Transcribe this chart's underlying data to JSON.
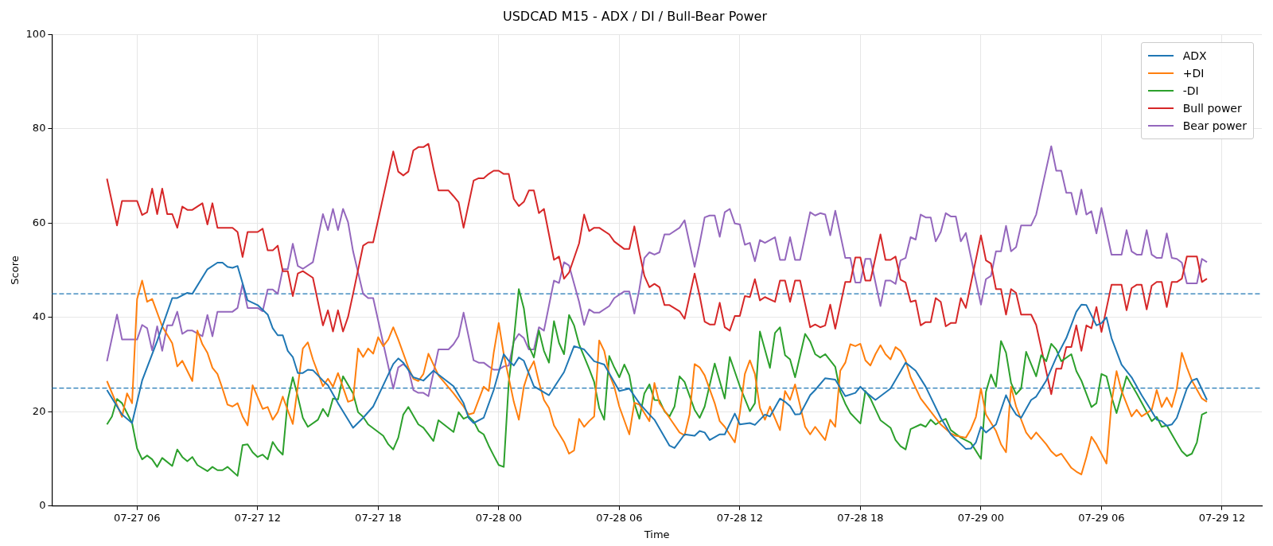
{
  "chart_data": {
    "type": "line",
    "title": "USDCAD M15 - ADX / DI / Bull-Bear Power",
    "xlabel": "Time",
    "ylabel": "Score",
    "xlim": [
      "--07-27T01:46",
      "--07-29T13:59"
    ],
    "xticks": [
      {
        "value": "--07-27T06:00",
        "label": "07-27 06"
      },
      {
        "value": "--07-27T12:00",
        "label": "07-27 12"
      },
      {
        "value": "--07-27T18:00",
        "label": "07-27 18"
      },
      {
        "value": "--07-28T00:00",
        "label": "07-28 00"
      },
      {
        "value": "--07-28T06:00",
        "label": "07-28 06"
      },
      {
        "value": "--07-28T12:00",
        "label": "07-28 12"
      },
      {
        "value": "--07-28T18:00",
        "label": "07-28 18"
      },
      {
        "value": "--07-29T00:00",
        "label": "07-29 00"
      },
      {
        "value": "--07-29T06:00",
        "label": "07-29 06"
      },
      {
        "value": "--07-29T12:00",
        "label": "07-29 12"
      }
    ],
    "ylim": [
      0,
      100
    ],
    "yticks": [
      0,
      20,
      40,
      60,
      80,
      100
    ],
    "grid": true,
    "legend": "top right",
    "ref_lines": [
      {
        "axis": "y",
        "value": 45,
        "color": "#1f77b4",
        "line_style": "dashed"
      },
      {
        "axis": "y",
        "value": 25,
        "color": "#1f77b4",
        "line_style": "dashed"
      }
    ],
    "series": [
      {
        "name": "ADX",
        "color": "#1f77b4",
        "x": [
          "--07-27T04:30",
          "--07-27T05:15",
          "--07-27T05:45",
          "--07-27T06:15",
          "--07-27T07:00",
          "--07-27T07:45",
          "--07-27T08:00",
          "--07-27T08:30",
          "--07-27T08:45",
          "--07-27T09:30",
          "--07-27T10:00",
          "--07-27T10:15",
          "--07-27T10:30",
          "--07-27T10:45",
          "--07-27T11:00",
          "--07-27T11:30",
          "--07-27T12:00",
          "--07-27T12:30",
          "--07-27T12:45",
          "--07-27T13:00",
          "--07-27T13:15",
          "--07-27T13:30",
          "--07-27T13:45",
          "--07-27T14:00",
          "--07-27T14:15",
          "--07-27T14:30",
          "--07-27T14:45",
          "--07-27T15:15",
          "--07-27T15:30",
          "--07-27T16:00",
          "--07-27T16:45",
          "--07-27T17:15",
          "--07-27T17:45",
          "--07-27T18:45",
          "--07-27T19:00",
          "--07-27T19:15",
          "--07-27T19:45",
          "--07-27T20:15",
          "--07-27T20:45",
          "--07-27T21:45",
          "--07-27T22:15",
          "--07-27T22:30",
          "--07-27T22:45",
          "--07-27T23:15",
          "--07-27T23:45",
          "--07-28T00:15",
          "--07-28T00:30",
          "--07-28T00:45",
          "--07-28T01:00",
          "--07-28T01:15",
          "--07-28T01:45",
          "--07-28T02:30",
          "--07-28T03:15",
          "--07-28T03:45",
          "--07-28T04:15",
          "--07-28T04:45",
          "--07-28T05:15",
          "--07-28T06:00",
          "--07-28T06:30",
          "--07-28T07:00",
          "--07-28T07:30",
          "--07-28T07:45",
          "--07-28T08:30",
          "--07-28T08:45",
          "--07-28T09:15",
          "--07-28T09:45",
          "--07-28T10:00",
          "--07-28T10:15",
          "--07-28T10:30",
          "--07-28T11:00",
          "--07-28T11:15",
          "--07-28T11:45",
          "--07-28T12:00",
          "--07-28T12:30",
          "--07-28T12:45",
          "--07-28T13:15",
          "--07-28T13:30",
          "--07-28T14:00",
          "--07-28T14:15",
          "--07-28T14:30",
          "--07-28T14:45",
          "--07-28T15:00",
          "--07-28T15:30",
          "--07-28T15:45",
          "--07-28T16:15",
          "--07-28T16:45",
          "--07-28T17:15",
          "--07-28T17:45",
          "--07-28T18:00",
          "--07-28T18:15",
          "--07-28T18:45",
          "--07-28T19:30",
          "--07-28T20:15",
          "--07-28T20:45",
          "--07-28T21:15",
          "--07-28T22:00",
          "--07-28T22:30",
          "--07-28T23:15",
          "--07-28T23:30",
          "--07-28T23:45",
          "--07-29T00:00",
          "--07-29T00:15",
          "--07-29T00:45",
          "--07-29T01:15",
          "--07-29T01:30",
          "--07-29T01:45",
          "--07-29T02:00",
          "--07-29T02:30",
          "--07-29T02:45",
          "--07-29T03:15",
          "--07-29T03:45",
          "--07-29T04:15",
          "--07-29T04:45",
          "--07-29T05:00",
          "--07-29T05:15",
          "--07-29T05:45",
          "--07-29T06:00",
          "--07-29T06:15",
          "--07-29T06:30",
          "--07-29T07:00",
          "--07-29T07:30",
          "--07-29T08:00",
          "--07-29T08:30",
          "--07-29T08:45",
          "--07-29T09:00",
          "--07-29T09:15",
          "--07-29T09:30",
          "--07-29T09:45",
          "--07-29T10:15",
          "--07-29T10:30",
          "--07-29T10:45",
          "--07-29T11:15"
        ],
        "values": [
          24.6,
          19.4,
          17.6,
          26.6,
          35,
          44.1,
          44.1,
          45.2,
          45,
          50.2,
          51.6,
          51.6,
          50.7,
          50.5,
          50.9,
          43.6,
          42.6,
          40.6,
          37.7,
          36.2,
          36.2,
          32.9,
          31.6,
          28.2,
          28.2,
          28.9,
          28.8,
          26.6,
          25.6,
          21.8,
          16.6,
          18.7,
          21.1,
          30.1,
          31.3,
          30.4,
          27.3,
          26.6,
          28.7,
          25.4,
          21.8,
          18.7,
          17.6,
          18.7,
          24.6,
          32.2,
          30.8,
          29.8,
          31.5,
          30.8,
          25.4,
          23.5,
          28.4,
          33.9,
          33.2,
          30.7,
          30,
          24.4,
          24.9,
          21.8,
          19.4,
          18.3,
          12.8,
          12.3,
          15.2,
          14.9,
          15.9,
          15.6,
          14,
          15.2,
          15.2,
          19.6,
          17.3,
          17.6,
          17.2,
          19.4,
          19,
          22.8,
          22.1,
          21.2,
          19.4,
          19.5,
          23.5,
          24.6,
          27.1,
          26.8,
          23.3,
          24,
          25.3,
          24.2,
          22.5,
          24.9,
          30.4,
          28.7,
          25.3,
          18.7,
          15.2,
          12.1,
          12.2,
          13.5,
          16.8,
          15.6,
          17.3,
          23.5,
          21.1,
          19.4,
          18.7,
          22.5,
          23.2,
          26.6,
          31.5,
          35.6,
          41.2,
          42.7,
          42.6,
          38.3,
          38.8,
          40,
          35.6,
          30,
          27.3,
          23.5,
          20.1,
          18.3,
          18,
          17,
          17.3,
          18.7,
          24.9,
          26.6,
          27,
          22.5
        ]
      },
      {
        "name": "+DI",
        "color": "#ff7f0e",
        "x": [
          "--07-27T04:30",
          "--07-27T05:15",
          "--07-27T05:30",
          "--07-27T05:45",
          "--07-27T06:00",
          "--07-27T06:15",
          "--07-27T06:30",
          "--07-27T06:45",
          "--07-27T07:15",
          "--07-27T07:45",
          "--07-27T08:00",
          "--07-27T08:15",
          "--07-27T08:45",
          "--07-27T09:00",
          "--07-27T09:15",
          "--07-27T09:30",
          "--07-27T09:45",
          "--07-27T10:00",
          "--07-27T10:15",
          "--07-27T10:30",
          "--07-27T10:45",
          "--07-27T11:00",
          "--07-27T11:15",
          "--07-27T11:30",
          "--07-27T11:45",
          "--07-27T12:15",
          "--07-27T12:30",
          "--07-27T12:45",
          "--07-27T13:00",
          "--07-27T13:15",
          "--07-27T13:45",
          "--07-27T14:15",
          "--07-27T14:30",
          "--07-27T14:45",
          "--07-27T15:15",
          "--07-27T15:30",
          "--07-27T15:45",
          "--07-27T16:00",
          "--07-27T16:30",
          "--07-27T16:45",
          "--07-27T17:00",
          "--07-27T17:15",
          "--07-27T17:30",
          "--07-27T17:45",
          "--07-27T18:00",
          "--07-27T18:15",
          "--07-27T18:30",
          "--07-27T18:45",
          "--07-27T19:00",
          "--07-27T19:30",
          "--07-27T19:45",
          "--07-27T20:00",
          "--07-27T20:15",
          "--07-27T20:30",
          "--07-27T21:00",
          "--07-27T21:45",
          "--07-27T22:15",
          "--07-27T22:30",
          "--07-27T22:45",
          "--07-27T23:15",
          "--07-27T23:30",
          "--07-27T23:45",
          "--07-28T00:00",
          "--07-28T00:15",
          "--07-28T00:45",
          "--07-28T01:00",
          "--07-28T01:15",
          "--07-28T01:30",
          "--07-28T01:45",
          "--07-28T02:00",
          "--07-28T02:15",
          "--07-28T02:30",
          "--07-28T02:45",
          "--07-28T03:15",
          "--07-28T03:30",
          "--07-28T03:45",
          "--07-28T04:00",
          "--07-28T04:15",
          "--07-28T04:30",
          "--07-28T04:45",
          "--07-28T05:00",
          "--07-28T05:15",
          "--07-28T05:30",
          "--07-28T05:45",
          "--07-28T06:00",
          "--07-28T06:30",
          "--07-28T06:45",
          "--07-28T07:00",
          "--07-28T07:15",
          "--07-28T07:30",
          "--07-28T07:45",
          "--07-28T08:00",
          "--07-28T08:30",
          "--07-28T09:00",
          "--07-28T09:15",
          "--07-28T09:30",
          "--07-28T09:45",
          "--07-28T10:00",
          "--07-28T10:15",
          "--07-28T10:45",
          "--07-28T11:00",
          "--07-28T11:15",
          "--07-28T11:45",
          "--07-28T12:00",
          "--07-28T12:15",
          "--07-28T12:30",
          "--07-28T12:45",
          "--07-28T13:00",
          "--07-28T13:15",
          "--07-28T13:30",
          "--07-28T14:00",
          "--07-28T14:15",
          "--07-28T14:30",
          "--07-28T14:45",
          "--07-28T15:15",
          "--07-28T15:30",
          "--07-28T15:45",
          "--07-28T16:15",
          "--07-28T16:30",
          "--07-28T16:45",
          "--07-28T17:00",
          "--07-28T17:15",
          "--07-28T17:30",
          "--07-28T17:45",
          "--07-28T18:00",
          "--07-28T18:15",
          "--07-28T18:30",
          "--07-28T18:45",
          "--07-28T19:00",
          "--07-28T19:15",
          "--07-28T19:30",
          "--07-28T19:45",
          "--07-28T20:00",
          "--07-28T20:15",
          "--07-28T20:30",
          "--07-28T21:00",
          "--07-28T22:00",
          "--07-28T22:30",
          "--07-28T22:45",
          "--07-28T23:15",
          "--07-28T23:30",
          "--07-28T23:45",
          "--07-29T00:00",
          "--07-29T00:15",
          "--07-29T00:45",
          "--07-29T01:00",
          "--07-29T01:15",
          "--07-29T01:30",
          "--07-29T01:45",
          "--07-29T02:15",
          "--07-29T02:30",
          "--07-29T02:45",
          "--07-29T03:15",
          "--07-29T03:30",
          "--07-29T03:45",
          "--07-29T04:00",
          "--07-29T04:30",
          "--07-29T04:45",
          "--07-29T05:00",
          "--07-29T05:15",
          "--07-29T05:30",
          "--07-29T05:45",
          "--07-29T06:15",
          "--07-29T06:30",
          "--07-29T06:45",
          "--07-29T07:00",
          "--07-29T07:30",
          "--07-29T07:45",
          "--07-29T08:00",
          "--07-29T08:30",
          "--07-29T08:45",
          "--07-29T09:00",
          "--07-29T09:15",
          "--07-29T09:30",
          "--07-29T09:45",
          "--07-29T10:00",
          "--07-29T10:15",
          "--07-29T10:30",
          "--07-29T11:00",
          "--07-29T11:15"
        ],
        "values": [
          26.5,
          18.9,
          23.9,
          21.8,
          43.9,
          47.8,
          43.3,
          43.9,
          38.1,
          34.5,
          29.6,
          30.8,
          26.5,
          37.2,
          34.3,
          32.5,
          29.3,
          28,
          24.9,
          21.5,
          21.1,
          21.8,
          19,
          17.1,
          25.6,
          20.6,
          21,
          18.3,
          19.9,
          23.2,
          17.4,
          33.4,
          34.7,
          31.1,
          25.4,
          27,
          25.3,
          28.2,
          22.1,
          22.5,
          33.4,
          31.6,
          33.4,
          32.3,
          35.8,
          33.9,
          35.3,
          37.9,
          35.3,
          29.4,
          27,
          26.5,
          28,
          32.3,
          27.7,
          23.9,
          21.1,
          19.4,
          19.7,
          25.3,
          24.4,
          32.5,
          38.8,
          32.2,
          22.1,
          18.3,
          25.3,
          28.7,
          30.7,
          26.3,
          22.5,
          20.8,
          17.1,
          13.6,
          11.1,
          11.8,
          18.5,
          16.8,
          18,
          19,
          35.1,
          32.9,
          28,
          25.3,
          21.1,
          15.2,
          21.9,
          21.5,
          19.7,
          18,
          26.1,
          21.8,
          18.7,
          15.6,
          15,
          19.4,
          30.1,
          29.4,
          27.7,
          21.8,
          18,
          16.8,
          13.5,
          19.7,
          28,
          30.9,
          28,
          20.8,
          18.3,
          21.1,
          16.1,
          24.4,
          22.5,
          25.8,
          16.8,
          15.2,
          16.8,
          14,
          18.3,
          16.8,
          28.7,
          30.4,
          34.3,
          33.9,
          34.4,
          30.9,
          29.8,
          32.2,
          34.1,
          32.2,
          31.1,
          33.7,
          32.9,
          30.9,
          27.3,
          22.8,
          17.3,
          15.4,
          14.9,
          14.5,
          16.3,
          18.9,
          24.9,
          19.4,
          15.9,
          13.1,
          11.4,
          25.3,
          21.1,
          15.6,
          14.2,
          15.6,
          13.1,
          11.6,
          10.6,
          11.1,
          8.1,
          7.3,
          6.7,
          10.4,
          14.7,
          13.1,
          9,
          21.9,
          28.6,
          24.4,
          19,
          20.4,
          19,
          20.4,
          24.6,
          21,
          23,
          21,
          24.9,
          32.5,
          29.4,
          26.6,
          22.8,
          22.1
        ]
      },
      {
        "name": "-DI",
        "color": "#2ca02c",
        "x": [
          "--07-27T04:30",
          "--07-27T04:45",
          "--07-27T05:00",
          "--07-27T05:15",
          "--07-27T05:45",
          "--07-27T06:00",
          "--07-27T06:15",
          "--07-27T06:30",
          "--07-27T06:45",
          "--07-27T07:00",
          "--07-27T07:15",
          "--07-27T07:45",
          "--07-27T08:00",
          "--07-27T08:15",
          "--07-27T08:30",
          "--07-27T08:45",
          "--07-27T09:00",
          "--07-27T09:30",
          "--07-27T09:45",
          "--07-27T10:00",
          "--07-27T10:15",
          "--07-27T10:30",
          "--07-27T11:00",
          "--07-27T11:15",
          "--07-27T11:30",
          "--07-27T11:45",
          "--07-27T12:00",
          "--07-27T12:15",
          "--07-27T12:30",
          "--07-27T12:45",
          "--07-27T13:00",
          "--07-27T13:15",
          "--07-27T13:30",
          "--07-27T13:45",
          "--07-27T14:00",
          "--07-27T14:15",
          "--07-27T14:30",
          "--07-27T15:00",
          "--07-27T15:15",
          "--07-27T15:30",
          "--07-27T15:45",
          "--07-27T16:00",
          "--07-27T16:15",
          "--07-27T16:45",
          "--07-27T17:00",
          "--07-27T17:15",
          "--07-27T17:30",
          "--07-27T18:15",
          "--07-27T18:30",
          "--07-27T18:45",
          "--07-27T19:00",
          "--07-27T19:15",
          "--07-27T19:30",
          "--07-27T20:00",
          "--07-27T20:15",
          "--07-27T20:30",
          "--07-27T20:45",
          "--07-27T21:00",
          "--07-27T21:45",
          "--07-27T22:00",
          "--07-27T22:15",
          "--07-27T22:30",
          "--07-27T22:45",
          "--07-27T23:00",
          "--07-27T23:15",
          "--07-27T23:30",
          "--07-27T23:45",
          "--07-28T00:00",
          "--07-28T00:15",
          "--07-28T00:30",
          "--07-28T00:45",
          "--07-28T01:00",
          "--07-28T01:15",
          "--07-28T01:30",
          "--07-28T01:45",
          "--07-28T02:00",
          "--07-28T02:15",
          "--07-28T02:30",
          "--07-28T02:45",
          "--07-28T03:00",
          "--07-28T03:15",
          "--07-28T03:30",
          "--07-28T03:45",
          "--07-28T04:00",
          "--07-28T04:30",
          "--07-28T04:45",
          "--07-28T05:00",
          "--07-28T05:15",
          "--07-28T05:30",
          "--07-28T05:45",
          "--07-28T06:00",
          "--07-28T06:15",
          "--07-28T06:30",
          "--07-28T06:45",
          "--07-28T07:00",
          "--07-28T07:15",
          "--07-28T07:30",
          "--07-28T07:45",
          "--07-28T08:00",
          "--07-28T08:15",
          "--07-28T08:30",
          "--07-28T08:45",
          "--07-28T09:00",
          "--07-28T09:15",
          "--07-28T09:45",
          "--07-28T10:00",
          "--07-28T10:15",
          "--07-28T10:45",
          "--07-28T11:15",
          "--07-28T11:30",
          "--07-28T12:00",
          "--07-28T12:30",
          "--07-28T12:45",
          "--07-28T13:00",
          "--07-28T13:30",
          "--07-28T13:45",
          "--07-28T14:00",
          "--07-28T14:15",
          "--07-28T14:30",
          "--07-28T14:45",
          "--07-28T15:15",
          "--07-28T15:30",
          "--07-28T15:45",
          "--07-28T16:00",
          "--07-28T16:15",
          "--07-28T16:45",
          "--07-28T17:00",
          "--07-28T17:15",
          "--07-28T17:30",
          "--07-28T18:00",
          "--07-28T18:15",
          "--07-28T18:30",
          "--07-28T19:00",
          "--07-28T19:30",
          "--07-28T19:45",
          "--07-28T20:00",
          "--07-28T20:15",
          "--07-28T20:30",
          "--07-28T21:00",
          "--07-28T21:15",
          "--07-28T21:30",
          "--07-28T21:45",
          "--07-28T22:00",
          "--07-28T22:15",
          "--07-28T22:30",
          "--07-28T23:00",
          "--07-28T23:30",
          "--07-29T00:00",
          "--07-29T00:15",
          "--07-29T00:30",
          "--07-29T00:45",
          "--07-29T01:00",
          "--07-29T01:15",
          "--07-29T01:30",
          "--07-29T01:45",
          "--07-29T02:00",
          "--07-29T02:15",
          "--07-29T02:45",
          "--07-29T03:00",
          "--07-29T03:15",
          "--07-29T03:30",
          "--07-29T03:45",
          "--07-29T04:00",
          "--07-29T04:30",
          "--07-29T04:45",
          "--07-29T05:00",
          "--07-29T05:30",
          "--07-29T05:45",
          "--07-29T06:00",
          "--07-29T06:15",
          "--07-29T06:30",
          "--07-29T06:45",
          "--07-29T07:15",
          "--07-29T07:45",
          "--07-29T08:30",
          "--07-29T08:45",
          "--07-29T09:00",
          "--07-29T09:15",
          "--07-29T09:45",
          "--07-29T10:00",
          "--07-29T10:15",
          "--07-29T10:30",
          "--07-29T10:45",
          "--07-29T11:00",
          "--07-29T11:15"
        ],
        "values": [
          17.3,
          19,
          22.7,
          21.8,
          17.6,
          12.2,
          9.9,
          10.7,
          9.9,
          8.3,
          10.2,
          8.5,
          12,
          10.4,
          9.5,
          10.4,
          8.7,
          7.4,
          8.3,
          7.6,
          7.6,
          8.3,
          6.4,
          12.9,
          13.1,
          11.4,
          10.4,
          10.9,
          9.9,
          13.6,
          12,
          10.9,
          22.5,
          27.3,
          23.2,
          18.7,
          16.8,
          18.3,
          20.6,
          19,
          22.8,
          22.6,
          27.5,
          23.9,
          19.9,
          18.9,
          17.3,
          14.9,
          13.1,
          12,
          14.5,
          19.4,
          21,
          17.3,
          16.6,
          15.2,
          13.8,
          18.2,
          15.7,
          19.9,
          18.5,
          19,
          18,
          15.9,
          15.2,
          12.8,
          10.7,
          8.7,
          8.3,
          26.3,
          35.3,
          46,
          41.9,
          33.9,
          31.5,
          37.2,
          32.9,
          30.4,
          39.2,
          34.6,
          32.2,
          40.5,
          38.3,
          34.3,
          29.1,
          26.3,
          20.8,
          18.3,
          31.8,
          29.4,
          27.3,
          30,
          27.7,
          21.8,
          18.5,
          23.9,
          25.8,
          22.5,
          22.4,
          20.1,
          19,
          21.1,
          27.5,
          26.3,
          20.4,
          18.7,
          21.1,
          30.2,
          22.8,
          31.6,
          25.4,
          20.1,
          21.8,
          37,
          29.3,
          36.7,
          37.9,
          32,
          31.1,
          27.3,
          36.5,
          34.9,
          32.2,
          31.5,
          32.2,
          29.5,
          24.2,
          21.7,
          19.7,
          17.5,
          24.4,
          22.8,
          18.2,
          16.6,
          14,
          12.7,
          12,
          16.3,
          17.3,
          16.8,
          18.3,
          17.3,
          18,
          18.5,
          16.1,
          14.5,
          13.4,
          10,
          24.2,
          27.9,
          25.3,
          35,
          32.5,
          26.1,
          23.7,
          24.9,
          32.7,
          27.5,
          32,
          30.7,
          34.4,
          33.2,
          30.7,
          32.2,
          28.6,
          26.6,
          21,
          21.8,
          28,
          27.5,
          23.2,
          19.7,
          27.5,
          23.9,
          18,
          18.9,
          16.8,
          17.1,
          13.4,
          11.6,
          10.6,
          11.1,
          13.5,
          19.4,
          19.9
        ]
      },
      {
        "name": "Bull power",
        "color": "#d62728",
        "x": [
          "--07-27T04:30",
          "--07-27T05:00",
          "--07-27T05:15",
          "--07-27T06:00",
          "--07-27T06:15",
          "--07-27T06:30",
          "--07-27T06:45",
          "--07-27T07:00",
          "--07-27T07:15",
          "--07-27T07:30",
          "--07-27T07:45",
          "--07-27T08:00",
          "--07-27T08:15",
          "--07-27T08:30",
          "--07-27T08:45",
          "--07-27T09:15",
          "--07-27T09:30",
          "--07-27T09:45",
          "--07-27T10:00",
          "--07-27T10:45",
          "--07-27T11:00",
          "--07-27T11:15",
          "--07-27T11:30",
          "--07-27T12:00",
          "--07-27T12:15",
          "--07-27T12:30",
          "--07-27T12:45",
          "--07-27T13:00",
          "--07-27T13:15",
          "--07-27T13:30",
          "--07-27T13:45",
          "--07-27T14:00",
          "--07-27T14:15",
          "--07-27T14:45",
          "--07-27T15:15",
          "--07-27T15:30",
          "--07-27T15:45",
          "--07-27T16:00",
          "--07-27T16:15",
          "--07-27T16:30",
          "--07-27T16:45",
          "--07-27T17:15",
          "--07-27T17:30",
          "--07-27T17:45",
          "--07-27T18:45",
          "--07-27T19:00",
          "--07-27T19:15",
          "--07-27T19:30",
          "--07-27T19:45",
          "--07-27T20:00",
          "--07-27T20:15",
          "--07-27T20:30",
          "--07-27T20:45",
          "--07-27T21:00",
          "--07-27T21:30",
          "--07-27T21:45",
          "--07-27T22:00",
          "--07-27T22:15",
          "--07-27T22:45",
          "--07-27T23:00",
          "--07-27T23:15",
          "--07-27T23:30",
          "--07-27T23:45",
          "--07-28T00:00",
          "--07-28T00:15",
          "--07-28T00:30",
          "--07-28T00:45",
          "--07-28T01:00",
          "--07-28T01:15",
          "--07-28T01:30",
          "--07-28T01:45",
          "--07-28T02:00",
          "--07-28T02:15",
          "--07-28T02:45",
          "--07-28T03:00",
          "--07-28T03:15",
          "--07-28T03:30",
          "--07-28T04:00",
          "--07-28T04:15",
          "--07-28T04:30",
          "--07-28T04:45",
          "--07-28T05:00",
          "--07-28T05:30",
          "--07-28T05:45",
          "--07-28T06:15",
          "--07-28T06:30",
          "--07-28T06:45",
          "--07-28T07:00",
          "--07-28T07:15",
          "--07-28T07:30",
          "--07-28T07:45",
          "--07-28T08:00",
          "--07-28T08:15",
          "--07-28T08:30",
          "--07-28T09:00",
          "--07-28T09:15",
          "--07-28T09:45",
          "--07-28T10:00",
          "--07-28T10:15",
          "--07-28T10:30",
          "--07-28T10:45",
          "--07-28T11:00",
          "--07-28T11:15",
          "--07-28T11:30",
          "--07-28T11:45",
          "--07-28T12:00",
          "--07-28T12:15",
          "--07-28T12:30",
          "--07-28T12:45",
          "--07-28T13:00",
          "--07-28T13:15",
          "--07-28T13:45",
          "--07-28T14:00",
          "--07-28T14:15",
          "--07-28T14:30",
          "--07-28T14:45",
          "--07-28T15:00",
          "--07-28T15:30",
          "--07-28T15:45",
          "--07-28T16:00",
          "--07-28T16:15",
          "--07-28T16:30",
          "--07-28T16:45",
          "--07-28T17:15",
          "--07-28T17:30",
          "--07-28T17:45",
          "--07-28T18:00",
          "--07-28T18:15",
          "--07-28T18:30",
          "--07-28T19:00",
          "--07-28T19:15",
          "--07-28T19:30",
          "--07-28T19:45",
          "--07-28T20:00",
          "--07-28T20:15",
          "--07-28T20:30",
          "--07-28T20:45",
          "--07-28T21:00",
          "--07-28T21:15",
          "--07-28T21:30",
          "--07-28T21:45",
          "--07-28T22:00",
          "--07-28T22:15",
          "--07-28T22:30",
          "--07-28T22:45",
          "--07-28T23:00",
          "--07-28T23:15",
          "--07-29T00:00",
          "--07-29T00:15",
          "--07-29T00:30",
          "--07-29T00:45",
          "--07-29T01:00",
          "--07-29T01:15",
          "--07-29T01:30",
          "--07-29T01:45",
          "--07-29T02:00",
          "--07-29T02:30",
          "--07-29T02:45",
          "--07-29T03:30",
          "--07-29T03:45",
          "--07-29T04:00",
          "--07-29T04:15",
          "--07-29T04:30",
          "--07-29T04:45",
          "--07-29T05:00",
          "--07-29T05:15",
          "--07-29T05:30",
          "--07-29T05:45",
          "--07-29T06:00",
          "--07-29T06:30",
          "--07-29T07:00",
          "--07-29T07:15",
          "--07-29T07:30",
          "--07-29T07:45",
          "--07-29T08:00",
          "--07-29T08:15",
          "--07-29T08:30",
          "--07-29T08:45",
          "--07-29T09:00",
          "--07-29T09:15",
          "--07-29T09:30",
          "--07-29T09:45",
          "--07-29T10:00",
          "--07-29T10:15",
          "--07-29T10:45",
          "--07-29T11:00",
          "--07-29T11:15"
        ],
        "values": [
          69.4,
          59.5,
          64.7,
          64.7,
          61.7,
          62.3,
          67.3,
          61.9,
          67.3,
          61.9,
          61.9,
          59,
          63.5,
          62.8,
          62.8,
          64.2,
          59.7,
          64.2,
          59,
          59,
          58.1,
          52.8,
          58.1,
          58.1,
          58.8,
          54.2,
          54.2,
          55.2,
          49.8,
          49.8,
          44.5,
          49.3,
          49.8,
          48.4,
          38.3,
          41.5,
          37,
          41.5,
          37,
          40.1,
          45,
          55.2,
          55.9,
          55.9,
          75.2,
          70.9,
          70.1,
          70.9,
          75.4,
          76.1,
          76.1,
          76.8,
          71.6,
          66.9,
          66.9,
          65.7,
          64.4,
          59,
          69,
          69.5,
          69.5,
          70.4,
          71.1,
          71.1,
          70.4,
          70.4,
          65.1,
          63.6,
          64.5,
          66.9,
          66.9,
          62.1,
          63,
          52.2,
          52.9,
          48.2,
          49.5,
          55.7,
          61.8,
          58.3,
          59,
          59,
          57.6,
          56.1,
          54.5,
          54.5,
          59.3,
          53.8,
          48.8,
          46.4,
          47.1,
          46.4,
          42.6,
          42.6,
          41.3,
          39.7,
          49.3,
          44.6,
          39.1,
          38.5,
          38.5,
          43.1,
          37.9,
          37.2,
          40.3,
          40.3,
          44.5,
          44.3,
          48.1,
          43.6,
          44.3,
          43.3,
          47.8,
          47.8,
          43.3,
          47.8,
          47.8,
          37.9,
          38.5,
          37.9,
          38.3,
          42.7,
          37.6,
          47.5,
          47.5,
          52.7,
          52.7,
          47.8,
          47.8,
          57.6,
          52.2,
          52.2,
          52.9,
          48,
          47.4,
          43.3,
          43.6,
          38.3,
          39,
          39,
          44.1,
          43.3,
          38.1,
          38.8,
          38.8,
          44.1,
          42,
          57.4,
          52.1,
          51.4,
          46,
          46,
          40.6,
          46,
          45.2,
          40.6,
          40.6,
          38.4,
          23.7,
          29.1,
          29.1,
          33.7,
          33.7,
          38.3,
          32.9,
          38.3,
          37.7,
          42.2,
          36.9,
          46.9,
          46.9,
          41.5,
          46.2,
          46.9,
          46.9,
          41.7,
          46.7,
          47.5,
          47.5,
          42.2,
          47.5,
          47.5,
          48.2,
          52.9,
          52.9,
          47.5,
          48.2
        ]
      },
      {
        "name": "Bear power",
        "color": "#9467bd",
        "x": [
          "--07-27T04:30",
          "--07-27T05:00",
          "--07-27T05:15",
          "--07-27T06:00",
          "--07-27T06:15",
          "--07-27T06:30",
          "--07-27T06:45",
          "--07-27T07:00",
          "--07-27T07:15",
          "--07-27T07:30",
          "--07-27T07:45",
          "--07-27T08:00",
          "--07-27T08:15",
          "--07-27T08:30",
          "--07-27T08:45",
          "--07-27T09:15",
          "--07-27T09:30",
          "--07-27T09:45",
          "--07-27T10:00",
          "--07-27T10:45",
          "--07-27T11:00",
          "--07-27T11:15",
          "--07-27T11:30",
          "--07-27T12:00",
          "--07-27T12:15",
          "--07-27T12:30",
          "--07-27T12:45",
          "--07-27T13:00",
          "--07-27T13:15",
          "--07-27T13:30",
          "--07-27T13:45",
          "--07-27T14:00",
          "--07-27T14:15",
          "--07-27T14:45",
          "--07-27T15:15",
          "--07-27T15:30",
          "--07-27T15:45",
          "--07-27T16:00",
          "--07-27T16:15",
          "--07-27T16:30",
          "--07-27T16:45",
          "--07-27T17:15",
          "--07-27T17:30",
          "--07-27T17:45",
          "--07-27T18:45",
          "--07-27T19:00",
          "--07-27T19:15",
          "--07-27T19:30",
          "--07-27T19:45",
          "--07-27T20:00",
          "--07-27T20:15",
          "--07-27T20:30",
          "--07-27T21:00",
          "--07-27T21:30",
          "--07-27T21:45",
          "--07-27T22:00",
          "--07-27T22:15",
          "--07-27T22:45",
          "--07-27T23:00",
          "--07-27T23:15",
          "--07-27T23:30",
          "--07-27T23:45",
          "--07-28T00:00",
          "--07-28T00:15",
          "--07-28T00:30",
          "--07-28T00:45",
          "--07-28T01:00",
          "--07-28T01:15",
          "--07-28T01:30",
          "--07-28T01:45",
          "--07-28T02:00",
          "--07-28T02:15",
          "--07-28T02:45",
          "--07-28T03:00",
          "--07-28T03:15",
          "--07-28T03:30",
          "--07-28T04:00",
          "--07-28T04:15",
          "--07-28T04:30",
          "--07-28T04:45",
          "--07-28T05:00",
          "--07-28T05:30",
          "--07-28T05:45",
          "--07-28T06:15",
          "--07-28T06:30",
          "--07-28T06:45",
          "--07-28T07:00",
          "--07-28T07:15",
          "--07-28T07:30",
          "--07-28T07:45",
          "--07-28T08:00",
          "--07-28T08:15",
          "--07-28T08:30",
          "--07-28T09:00",
          "--07-28T09:15",
          "--07-28T09:45",
          "--07-28T10:00",
          "--07-28T10:15",
          "--07-28T10:30",
          "--07-28T10:45",
          "--07-28T11:00",
          "--07-28T11:15",
          "--07-28T11:30",
          "--07-28T11:45",
          "--07-28T12:00",
          "--07-28T12:15",
          "--07-28T12:30",
          "--07-28T12:45",
          "--07-28T13:00",
          "--07-28T13:15",
          "--07-28T13:45",
          "--07-28T14:00",
          "--07-28T14:15",
          "--07-28T14:30",
          "--07-28T14:45",
          "--07-28T15:00",
          "--07-28T15:30",
          "--07-28T15:45",
          "--07-28T16:00",
          "--07-28T16:15",
          "--07-28T16:30",
          "--07-28T16:45",
          "--07-28T17:15",
          "--07-28T17:30",
          "--07-28T17:45",
          "--07-28T18:00",
          "--07-28T18:15",
          "--07-28T18:30",
          "--07-28T19:00",
          "--07-28T19:15",
          "--07-28T19:30",
          "--07-28T19:45",
          "--07-28T20:00",
          "--07-28T20:15",
          "--07-28T20:30",
          "--07-28T20:45",
          "--07-28T21:00",
          "--07-28T21:15",
          "--07-28T21:30",
          "--07-28T21:45",
          "--07-28T22:00",
          "--07-28T22:15",
          "--07-28T22:30",
          "--07-28T22:45",
          "--07-28T23:00",
          "--07-28T23:15",
          "--07-29T00:00",
          "--07-29T00:15",
          "--07-29T00:30",
          "--07-29T00:45",
          "--07-29T01:00",
          "--07-29T01:15",
          "--07-29T01:30",
          "--07-29T01:45",
          "--07-29T02:00",
          "--07-29T02:30",
          "--07-29T02:45",
          "--07-29T03:30",
          "--07-29T03:45",
          "--07-29T04:00",
          "--07-29T04:15",
          "--07-29T04:30",
          "--07-29T04:45",
          "--07-29T05:00",
          "--07-29T05:15",
          "--07-29T05:30",
          "--07-29T05:45",
          "--07-29T06:00",
          "--07-29T06:30",
          "--07-29T07:00",
          "--07-29T07:15",
          "--07-29T07:30",
          "--07-29T07:45",
          "--07-29T08:00",
          "--07-29T08:15",
          "--07-29T08:30",
          "--07-29T08:45",
          "--07-29T09:00",
          "--07-29T09:15",
          "--07-29T09:30",
          "--07-29T09:45",
          "--07-29T10:00",
          "--07-29T10:15",
          "--07-29T10:45",
          "--07-29T11:00",
          "--07-29T11:15"
        ],
        "values": [
          30.7,
          40.6,
          35.3,
          35.3,
          38.4,
          37.7,
          33,
          38.1,
          32.9,
          38.3,
          38.3,
          41.2,
          36.5,
          37.2,
          37.2,
          36,
          40.5,
          36,
          41.2,
          41.2,
          42,
          47.1,
          42,
          42,
          41.3,
          45.9,
          45.9,
          45,
          50.2,
          50.2,
          55.6,
          50.9,
          50.3,
          51.7,
          61.9,
          58.5,
          63,
          58.5,
          63,
          60.2,
          54,
          45,
          44.1,
          44.1,
          24.9,
          29.4,
          30.1,
          29.1,
          24.6,
          24,
          24,
          23.3,
          33.2,
          33.2,
          34.3,
          36,
          41,
          30.9,
          30.4,
          30.4,
          29.6,
          28.9,
          28.9,
          29.6,
          29.8,
          34.9,
          36.5,
          35.6,
          33.2,
          33.2,
          37.9,
          37.2,
          47.8,
          47.3,
          51.7,
          51,
          43.3,
          38.4,
          41.7,
          41,
          41,
          42.4,
          44.1,
          45.5,
          45.5,
          40.8,
          46,
          52.6,
          53.8,
          53.3,
          53.8,
          57.6,
          57.6,
          59,
          60.6,
          50.7,
          55.7,
          61.2,
          61.6,
          61.6,
          57.1,
          62.3,
          63,
          59.9,
          59.7,
          55.4,
          55.8,
          51.9,
          56.4,
          55.8,
          57,
          52.2,
          52.2,
          57,
          52.2,
          52.2,
          62.3,
          61.6,
          62.1,
          61.8,
          57.4,
          62.6,
          52.6,
          52.6,
          47.4,
          47.4,
          52.4,
          52.4,
          42.4,
          47.8,
          47.8,
          47.1,
          52.1,
          52.6,
          57,
          56.5,
          61.8,
          61.2,
          61.2,
          56.1,
          58.1,
          62.1,
          61.4,
          61.4,
          56.1,
          57.9,
          42.7,
          48.1,
          48.8,
          54,
          54,
          59.4,
          54,
          54.9,
          59.5,
          59.5,
          61.8,
          76.3,
          71.1,
          71.1,
          66.4,
          66.4,
          61.8,
          67.1,
          61.8,
          62.5,
          57.8,
          63.2,
          53.3,
          53.3,
          58.5,
          54,
          53.3,
          53.3,
          58.5,
          53.3,
          52.6,
          52.6,
          57.8,
          52.6,
          52.4,
          51.6,
          47.2,
          47.2,
          52.4,
          51.7
        ]
      }
    ]
  }
}
